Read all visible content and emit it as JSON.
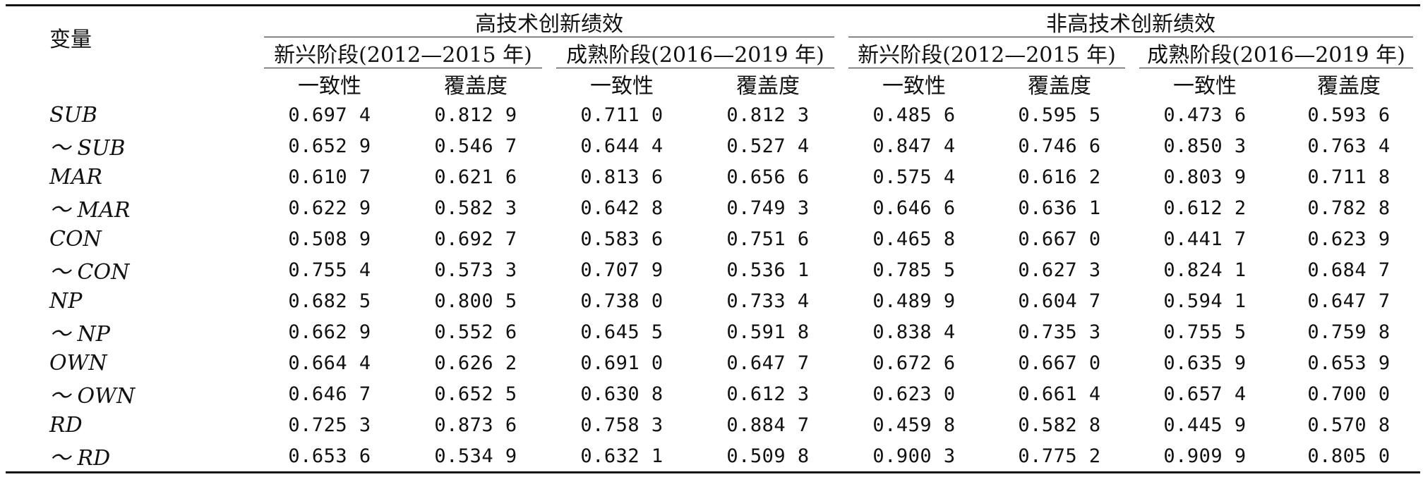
{
  "table": {
    "variable_header": "变量",
    "groups": [
      {
        "label": "高技术创新绩效",
        "stages": [
          {
            "label": "新兴阶段(2012—2015 年)"
          },
          {
            "label": "成熟阶段(2016—2019 年)"
          }
        ]
      },
      {
        "label": "非高技术创新绩效",
        "stages": [
          {
            "label": "新兴阶段(2012—2015 年)"
          },
          {
            "label": "成熟阶段(2016—2019 年)"
          }
        ]
      }
    ],
    "metrics": [
      "一致性",
      "覆盖度",
      "一致性",
      "覆盖度",
      "一致性",
      "覆盖度",
      "一致性",
      "覆盖度"
    ],
    "rows": [
      {
        "label": "SUB",
        "values": [
          "0.697 4",
          "0.812 9",
          "0.711 0",
          "0.812 3",
          "0.485 6",
          "0.595 5",
          "0.473 6",
          "0.593 6"
        ]
      },
      {
        "label": "～ SUB",
        "values": [
          "0.652 9",
          "0.546 7",
          "0.644 4",
          "0.527 4",
          "0.847 4",
          "0.746 6",
          "0.850 3",
          "0.763 4"
        ]
      },
      {
        "label": "MAR",
        "values": [
          "0.610 7",
          "0.621 6",
          "0.813 6",
          "0.656 6",
          "0.575 4",
          "0.616 2",
          "0.803 9",
          "0.711 8"
        ]
      },
      {
        "label": "～ MAR",
        "values": [
          "0.622 9",
          "0.582 3",
          "0.642 8",
          "0.749 3",
          "0.646 6",
          "0.636 1",
          "0.612 2",
          "0.782 8"
        ]
      },
      {
        "label": "CON",
        "values": [
          "0.508 9",
          "0.692 7",
          "0.583 6",
          "0.751 6",
          "0.465 8",
          "0.667 0",
          "0.441 7",
          "0.623 9"
        ]
      },
      {
        "label": "～ CON",
        "values": [
          "0.755 4",
          "0.573 3",
          "0.707 9",
          "0.536 1",
          "0.785 5",
          "0.627 3",
          "0.824 1",
          "0.684 7"
        ]
      },
      {
        "label": "NP",
        "values": [
          "0.682 5",
          "0.800 5",
          "0.738 0",
          "0.733 4",
          "0.489 9",
          "0.604 7",
          "0.594 1",
          "0.647 7"
        ]
      },
      {
        "label": "～ NP",
        "values": [
          "0.662 9",
          "0.552 6",
          "0.645 5",
          "0.591 8",
          "0.838 4",
          "0.735 3",
          "0.755 5",
          "0.759 8"
        ]
      },
      {
        "label": "OWN",
        "values": [
          "0.664 4",
          "0.626 2",
          "0.691 0",
          "0.647 7",
          "0.672 6",
          "0.667 0",
          "0.635 9",
          "0.653 9"
        ]
      },
      {
        "label": "～ OWN",
        "values": [
          "0.646 7",
          "0.652 5",
          "0.630 8",
          "0.612 3",
          "0.623 0",
          "0.661 4",
          "0.657 4",
          "0.700 0"
        ]
      },
      {
        "label": "RD",
        "values": [
          "0.725 3",
          "0.873 6",
          "0.758 3",
          "0.884 7",
          "0.459 8",
          "0.582 8",
          "0.445 9",
          "0.570 8"
        ]
      },
      {
        "label": "～ RD",
        "values": [
          "0.653 6",
          "0.534 9",
          "0.632 1",
          "0.509 8",
          "0.900 3",
          "0.775 2",
          "0.909 9",
          "0.805 0"
        ]
      }
    ]
  }
}
